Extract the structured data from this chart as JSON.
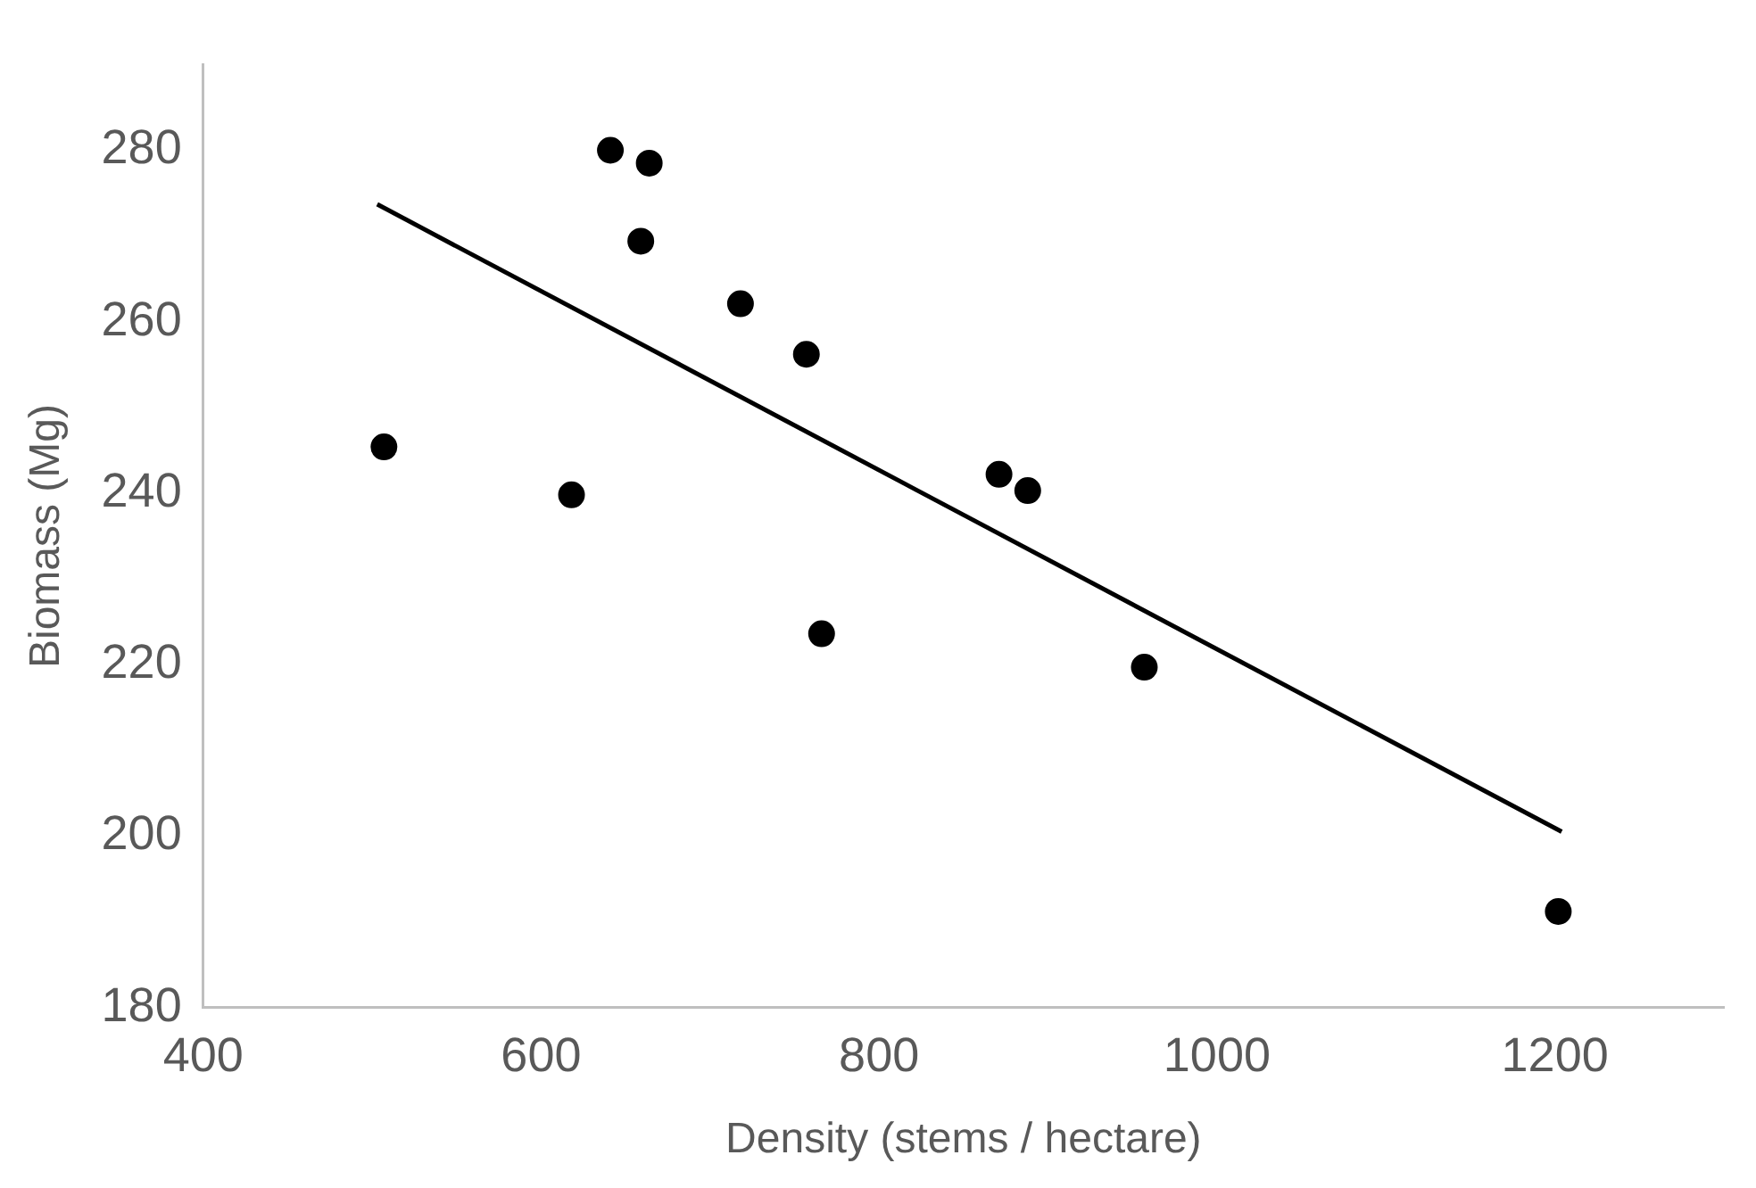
{
  "chart_data": {
    "type": "scatter",
    "xlabel": "Density (stems / hectare)",
    "ylabel": "Biomass (Mg)",
    "xlim": [
      400,
      1300
    ],
    "xticks": [
      400,
      600,
      800,
      1000,
      1200
    ],
    "ylim": [
      180,
      290
    ],
    "yticks": [
      180,
      200,
      220,
      240,
      260,
      280
    ],
    "series": [
      {
        "color": "#000000",
        "marker": "circle",
        "x": [
          507,
          618,
          641,
          664,
          659,
          718,
          757,
          766,
          871,
          888,
          957,
          1202
        ],
        "values": [
          245.4,
          239.8,
          280,
          278.5,
          269.4,
          262.1,
          256.2,
          223.6,
          242.2,
          240.3,
          219.7,
          191.2
        ]
      },
      {
        "type": "line",
        "color": "#000000",
        "marker": "none",
        "line_style": "solid",
        "x": [
          503,
          1204
        ],
        "values": [
          273.7,
          200.5
        ]
      }
    ]
  }
}
